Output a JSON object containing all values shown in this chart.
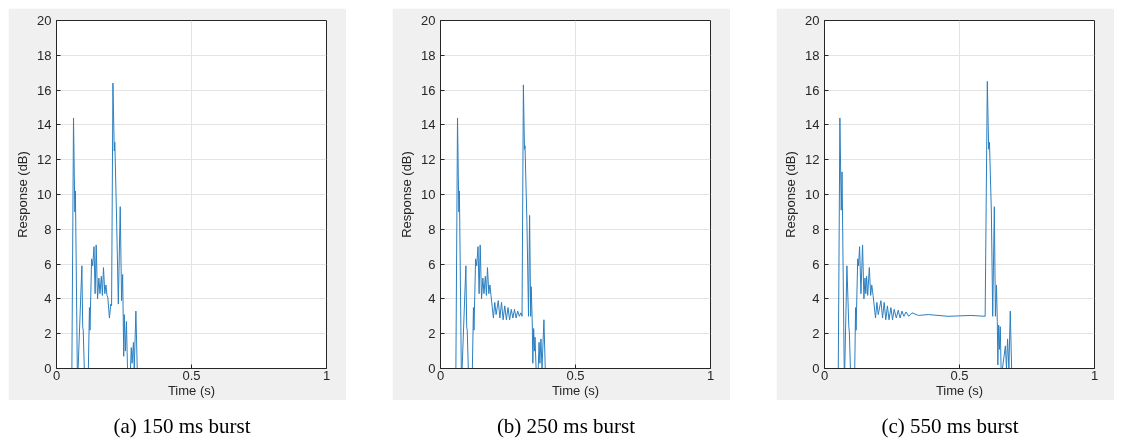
{
  "chart_data": [
    {
      "type": "line",
      "title": "(a) 150 ms burst",
      "xlabel": "Time (s)",
      "ylabel": "Response (dB)",
      "xlim": [
        0,
        1
      ],
      "xticks": [
        0,
        0.5,
        1
      ],
      "ylim": [
        0,
        20
      ],
      "yticks": [
        0,
        2,
        4,
        6,
        8,
        10,
        12,
        14,
        16,
        18,
        20
      ],
      "grid": true,
      "series": [
        {
          "color": "#2c7fc0",
          "x": [
            0.057,
            0.063,
            0.066,
            0.068,
            0.07,
            0.073,
            0.077,
            0.08,
            0.094,
            0.097,
            0.099,
            0.103,
            0.118,
            0.122,
            0.124,
            0.13,
            0.134,
            0.139,
            0.143,
            0.147,
            0.152,
            0.157,
            0.161,
            0.166,
            0.17,
            0.174,
            0.179,
            0.183,
            0.187,
            0.19,
            0.196,
            0.201,
            0.204,
            0.209,
            0.214,
            0.216,
            0.222,
            0.229,
            0.236,
            0.241,
            0.245,
            0.249,
            0.251,
            0.255,
            0.259,
            0.263,
            0.274,
            0.277,
            0.28,
            0.285,
            0.288,
            0.294,
            0.299
          ],
          "values": [
            0,
            14.4,
            11.0,
            9.0,
            10.2,
            6.0,
            0,
            0,
            5.9,
            2.4,
            2.2,
            0,
            0,
            3.5,
            2.2,
            6.3,
            5.9,
            7.0,
            4.3,
            7.1,
            4.0,
            5.2,
            4.3,
            5.3,
            4.2,
            5.8,
            4.3,
            4.8,
            4.2,
            4.1,
            2.9,
            3.7,
            3.6,
            16.4,
            12.5,
            13.0,
            9.0,
            3.7,
            9.3,
            3.9,
            5.4,
            0.7,
            3.1,
            1.0,
            2.7,
            0,
            0,
            1.2,
            0.3,
            1.5,
            0,
            3.3,
            0
          ]
        }
      ]
    },
    {
      "type": "line",
      "title": "(b) 250 ms burst",
      "xlabel": "Time (s)",
      "ylabel": "Response (dB)",
      "xlim": [
        0,
        1
      ],
      "xticks": [
        0,
        0.5,
        1
      ],
      "ylim": [
        0,
        20
      ],
      "yticks": [
        0,
        2,
        4,
        6,
        8,
        10,
        12,
        14,
        16,
        18,
        20
      ],
      "grid": true,
      "series": [
        {
          "color": "#2c7fc0",
          "x": [
            0.057,
            0.063,
            0.066,
            0.068,
            0.07,
            0.073,
            0.077,
            0.08,
            0.094,
            0.097,
            0.099,
            0.103,
            0.118,
            0.122,
            0.124,
            0.13,
            0.134,
            0.139,
            0.143,
            0.147,
            0.152,
            0.157,
            0.161,
            0.166,
            0.17,
            0.174,
            0.179,
            0.183,
            0.187,
            0.196,
            0.201,
            0.206,
            0.214,
            0.22,
            0.226,
            0.232,
            0.238,
            0.244,
            0.25,
            0.256,
            0.262,
            0.268,
            0.274,
            0.28,
            0.286,
            0.292,
            0.298,
            0.302,
            0.307,
            0.311,
            0.313,
            0.32,
            0.326,
            0.33,
            0.334,
            0.336,
            0.34,
            0.342,
            0.345,
            0.348,
            0.35,
            0.354,
            0.362,
            0.365,
            0.368,
            0.372,
            0.376,
            0.383,
            0.388
          ],
          "values": [
            0,
            14.4,
            11.0,
            9.0,
            10.2,
            6.0,
            0,
            0,
            5.9,
            2.4,
            2.2,
            0,
            0,
            3.5,
            2.2,
            6.3,
            5.9,
            7.0,
            4.3,
            7.1,
            4.0,
            5.2,
            4.3,
            5.3,
            4.2,
            5.8,
            4.3,
            4.8,
            4.2,
            2.9,
            3.8,
            3.1,
            3.9,
            2.9,
            3.8,
            2.8,
            3.6,
            2.8,
            3.5,
            2.8,
            3.4,
            2.9,
            3.4,
            2.9,
            3.3,
            3.0,
            3.2,
            3.0,
            16.3,
            12.6,
            12.8,
            8.5,
            3.0,
            8.8,
            3.0,
            4.7,
            2.5,
            0.3,
            2.3,
            1.0,
            1.8,
            0,
            0,
            1.5,
            0.3,
            1.7,
            0,
            2.8,
            0
          ]
        }
      ]
    },
    {
      "type": "line",
      "title": "(c) 550 ms burst",
      "xlabel": "Time (s)",
      "ylabel": "Response (dB)",
      "xlim": [
        0,
        1
      ],
      "xticks": [
        0,
        0.5,
        1
      ],
      "ylim": [
        0,
        20
      ],
      "yticks": [
        0,
        2,
        4,
        6,
        8,
        10,
        12,
        14,
        16,
        18,
        20
      ],
      "grid": true,
      "series": [
        {
          "color": "#2c7fc0",
          "x": [
            0.051,
            0.057,
            0.062,
            0.065,
            0.073,
            0.075,
            0.083,
            0.09,
            0.092,
            0.096,
            0.112,
            0.115,
            0.117,
            0.123,
            0.126,
            0.13,
            0.135,
            0.141,
            0.146,
            0.15,
            0.153,
            0.156,
            0.16,
            0.166,
            0.171,
            0.175,
            0.18,
            0.189,
            0.194,
            0.199,
            0.209,
            0.215,
            0.221,
            0.227,
            0.233,
            0.239,
            0.246,
            0.252,
            0.258,
            0.266,
            0.273,
            0.28,
            0.287,
            0.294,
            0.302,
            0.312,
            0.324,
            0.348,
            0.385,
            0.457,
            0.542,
            0.595,
            0.603,
            0.608,
            0.611,
            0.618,
            0.623,
            0.629,
            0.633,
            0.637,
            0.64,
            0.642,
            0.645,
            0.648,
            0.651,
            0.654,
            0.659,
            0.67,
            0.674,
            0.678,
            0.683,
            0.688,
            0.693
          ],
          "values": [
            0,
            14.4,
            9.1,
            11.3,
            0,
            0,
            5.9,
            2.4,
            2.1,
            0,
            0,
            3.5,
            2.2,
            6.3,
            5.9,
            7.0,
            4.3,
            7.1,
            4.0,
            5.2,
            4.3,
            5.3,
            4.2,
            5.8,
            4.2,
            4.8,
            4.2,
            2.9,
            3.8,
            3.1,
            3.9,
            2.9,
            3.8,
            2.8,
            3.6,
            2.8,
            3.5,
            2.8,
            3.4,
            2.9,
            3.35,
            2.9,
            3.3,
            3.0,
            3.25,
            3.0,
            3.2,
            3.05,
            3.1,
            3.0,
            3.05,
            3.0,
            16.5,
            12.6,
            13.0,
            9.0,
            3.0,
            9.3,
            3.0,
            4.8,
            2.7,
            0.2,
            2.5,
            1.1,
            2.4,
            0,
            0,
            1.3,
            0,
            1.7,
            0,
            3.3,
            0
          ]
        }
      ]
    }
  ]
}
